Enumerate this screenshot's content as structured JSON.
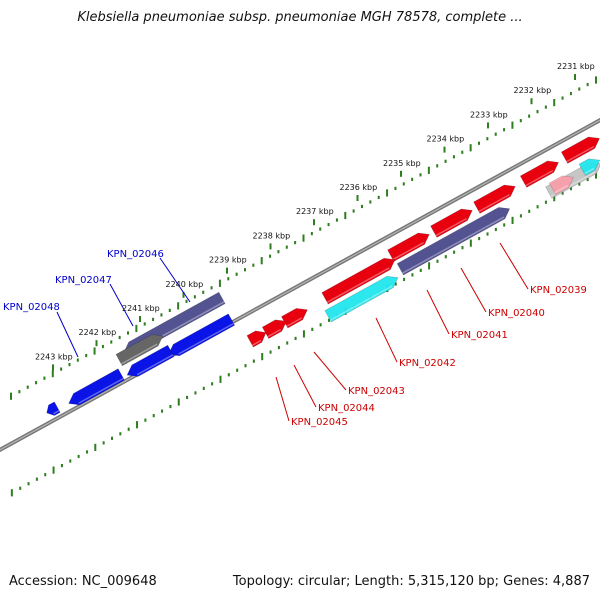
{
  "title": "Klebsiella pneumoniae subsp. pneumoniae MGH 78578, complete ...",
  "footer": {
    "accession": "Accession: NC_009648",
    "summary": "Topology: circular; Length: 5,315,120 bp; Genes: 4,887"
  },
  "colors": {
    "forward": "#e8000f",
    "reverse": "#0a14e6",
    "backbone": "#777777",
    "ticks": "#2e7d1e",
    "label_forward": "#cc0000",
    "label_reverse": "#0000cc",
    "overlap": "#4a4a8c",
    "hit": "#22e6ee"
  },
  "scale": {
    "unit": "kbp",
    "ticks": [
      {
        "label": "2231 kbp"
      },
      {
        "label": "2232 kbp"
      },
      {
        "label": "2233 kbp"
      },
      {
        "label": "2234 kbp"
      },
      {
        "label": "2235 kbp"
      },
      {
        "label": "2236 kbp"
      },
      {
        "label": "2237 kbp"
      },
      {
        "label": "2238 kbp"
      },
      {
        "label": "2239 kbp"
      },
      {
        "label": "2240 kbp"
      },
      {
        "label": "2241 kbp"
      },
      {
        "label": "2242 kbp"
      },
      {
        "label": "2243 kbp"
      }
    ]
  },
  "genes": [
    {
      "label": "KPN_02039",
      "strand": "forward"
    },
    {
      "label": "KPN_02040",
      "strand": "forward"
    },
    {
      "label": "KPN_02041",
      "strand": "forward"
    },
    {
      "label": "KPN_02042",
      "strand": "forward"
    },
    {
      "label": "KPN_02043",
      "strand": "forward"
    },
    {
      "label": "KPN_02044",
      "strand": "forward"
    },
    {
      "label": "KPN_02045",
      "strand": "forward"
    },
    {
      "label": "KPN_02046",
      "strand": "reverse"
    },
    {
      "label": "KPN_02047",
      "strand": "reverse"
    },
    {
      "label": "KPN_02048",
      "strand": "reverse"
    }
  ]
}
